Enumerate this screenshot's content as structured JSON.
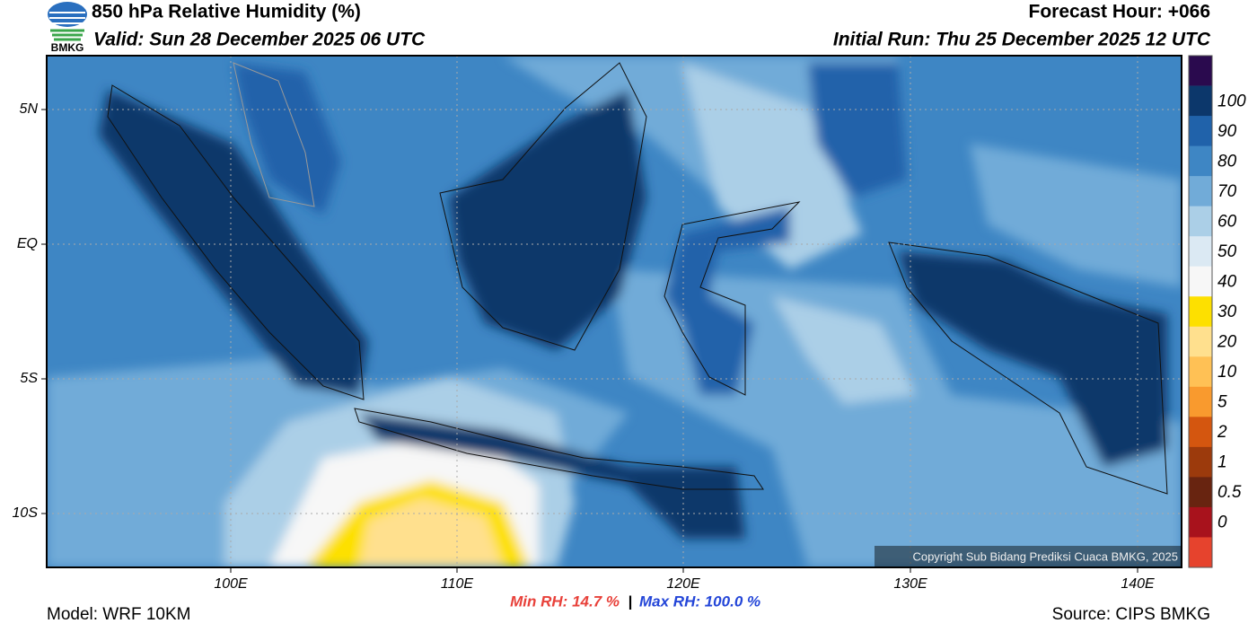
{
  "header": {
    "title": "850 hPa Relative Humidity (%)",
    "valid": "Valid: Sun 28 December 2025 06 UTC",
    "forecast_hour": "Forecast Hour: +066",
    "initial_run": "Initial Run: Thu 25 December 2025 12 UTC",
    "logo_text": "BMKG"
  },
  "map": {
    "lat_labels": [
      "5N",
      "EQ",
      "5S",
      "10S"
    ],
    "lon_labels": [
      "100E",
      "110E",
      "120E",
      "130E",
      "140E"
    ],
    "copyright": "Copyright Sub Bidang Prediksi Cuaca BMKG, 2025"
  },
  "colorbar": {
    "top_color": "#2a0a4e",
    "labels": [
      "100",
      "90",
      "80",
      "70",
      "60",
      "50",
      "40",
      "30",
      "20",
      "10",
      "5",
      "2",
      "1",
      "0.5",
      "0"
    ],
    "colors": [
      "#0c376b",
      "#2062aa",
      "#3e86c4",
      "#71abd8",
      "#abcfe7",
      "#dbe9f3",
      "#f7f7f7",
      "#fde000",
      "#ffe08e",
      "#ffc155",
      "#f99a2e",
      "#d4560f",
      "#9c3a0c",
      "#682410",
      "#a8121c",
      "#e6432d"
    ]
  },
  "footer": {
    "model": "Model: WRF 10KM",
    "min_rh": "Min RH:  14.7 %",
    "separator": "|",
    "max_rh": "Max RH: 100.0 %",
    "source": "Source: CIPS BMKG"
  }
}
